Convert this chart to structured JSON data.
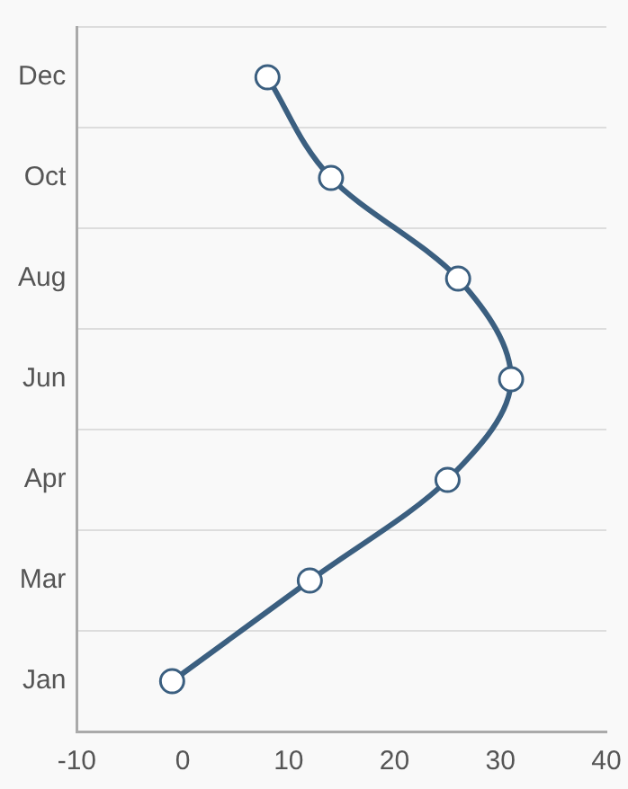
{
  "chart_data": {
    "type": "line",
    "orientation": "horizontal",
    "categories": [
      "Dec",
      "Oct",
      "Aug",
      "Jun",
      "Apr",
      "Mar",
      "Jan"
    ],
    "series": [
      {
        "color": "#3b5f80",
        "values": [
          8,
          14,
          26,
          31,
          25,
          12,
          -1
        ]
      }
    ],
    "xlim": [
      -10,
      40
    ],
    "xticks": [
      -10,
      0,
      10,
      20,
      30,
      40
    ],
    "grid": "y",
    "legend": false,
    "marker": "circle",
    "line_style": "solid"
  }
}
